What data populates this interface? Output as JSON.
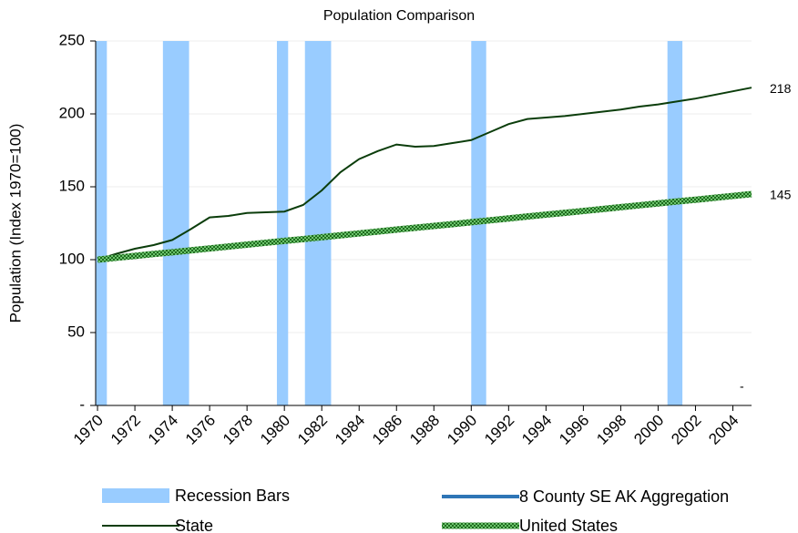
{
  "chart_data": {
    "type": "line",
    "title": "Population Comparison",
    "y_label": "Population (Index 1970=100)",
    "x": [
      1970,
      1971,
      1972,
      1973,
      1974,
      1975,
      1976,
      1977,
      1978,
      1979,
      1980,
      1981,
      1982,
      1983,
      1984,
      1985,
      1986,
      1987,
      1988,
      1989,
      1990,
      1991,
      1992,
      1993,
      1994,
      1995,
      1996,
      1997,
      1998,
      1999,
      2000,
      2001,
      2002,
      2003,
      2004,
      2005
    ],
    "xlim": [
      1969.9,
      2005
    ],
    "xticks": [
      1970,
      1972,
      1974,
      1976,
      1978,
      1980,
      1982,
      1984,
      1986,
      1988,
      1990,
      1992,
      1994,
      1996,
      1998,
      2000,
      2002,
      2004
    ],
    "ylim": [
      0,
      250
    ],
    "yticks": [
      {
        "value": 0,
        "label": "-"
      },
      50,
      100,
      150,
      200,
      250
    ],
    "grid": true,
    "recession_bars": {
      "name": "Recession Bars",
      "color": "#99ccff",
      "ranges": [
        [
          1969.9,
          1970.5
        ],
        [
          1973.5,
          1974.9
        ],
        [
          1979.6,
          1980.2
        ],
        [
          1981.1,
          1982.5
        ],
        [
          1990.0,
          1990.8
        ],
        [
          2000.5,
          2001.3
        ]
      ]
    },
    "series": [
      {
        "name": "8 County SE AK Aggregation",
        "color": "#2e75b6",
        "end_label": "-",
        "values": [
          null,
          null,
          null,
          null,
          null,
          null,
          null,
          null,
          null,
          null,
          null,
          null,
          null,
          null,
          null,
          null,
          null,
          null,
          null,
          null,
          null,
          null,
          null,
          null,
          null,
          null,
          null,
          null,
          null,
          null,
          null,
          null,
          null,
          null,
          null,
          null
        ]
      },
      {
        "name": "State",
        "color": "#0b3d0b",
        "values": [
          100,
          104,
          107.5,
          110,
          113.5,
          121,
          129,
          130,
          132,
          132.5,
          133,
          137.5,
          147.5,
          160,
          169,
          174.5,
          179,
          177.5,
          178,
          180,
          182,
          187.5,
          193,
          196.5,
          197.5,
          198.5,
          200,
          201.5,
          203,
          205,
          206.5,
          208.5,
          210.5,
          213,
          215.5,
          218
        ]
      },
      {
        "name": "United States",
        "color": "#5cb85c",
        "values": [
          100,
          101.3,
          102.6,
          103.9,
          105.1,
          106.4,
          107.7,
          109,
          110.3,
          111.6,
          112.9,
          114.1,
          115.4,
          116.7,
          118,
          119.3,
          120.6,
          121.9,
          123.1,
          124.4,
          125.7,
          127,
          128.3,
          129.6,
          130.9,
          132.1,
          133.4,
          134.7,
          136,
          137.3,
          138.6,
          139.9,
          141.1,
          142.4,
          143.7,
          145
        ]
      }
    ]
  }
}
